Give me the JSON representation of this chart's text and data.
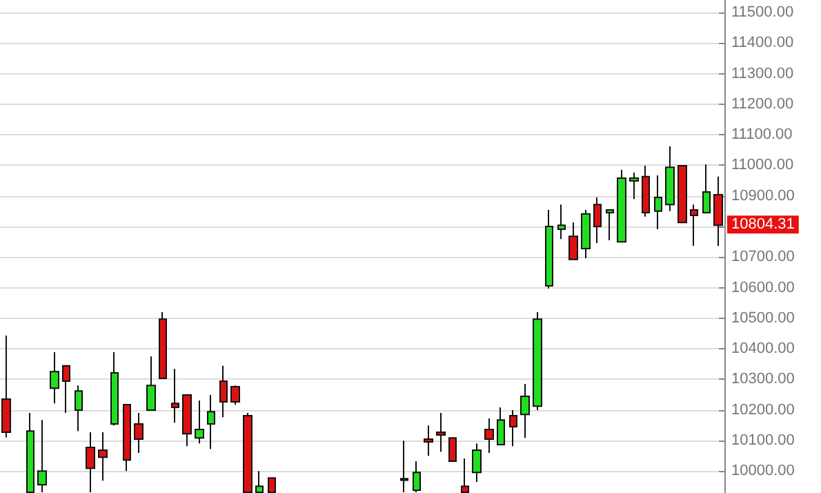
{
  "chart_data": {
    "type": "candlestick",
    "categories": [
      null,
      null,
      null,
      null,
      null,
      null,
      null,
      null,
      null,
      null,
      null,
      null,
      null,
      null,
      null,
      null,
      null,
      null,
      null,
      null,
      null,
      null,
      null,
      null,
      null,
      null,
      null,
      null,
      null,
      null,
      null,
      null,
      null,
      null,
      null,
      null,
      null,
      null,
      null,
      null,
      null,
      null,
      null,
      null,
      null,
      null,
      null,
      null,
      null,
      null,
      null,
      null,
      null,
      null,
      null,
      null,
      null,
      null,
      null,
      null
    ],
    "ohlc": [
      [
        10235,
        10443,
        10110,
        10127
      ],
      null,
      [
        9930,
        10190,
        9930,
        10131
      ],
      [
        9955,
        10167,
        9930,
        10000
      ],
      [
        10271,
        10389,
        10221,
        10325
      ],
      [
        10344,
        10344,
        10190,
        10294
      ],
      [
        10199,
        10280,
        10131,
        10262
      ],
      [
        10077,
        10127,
        9930,
        10009
      ],
      [
        10068,
        10127,
        9968,
        10045
      ],
      [
        10154,
        10389,
        10149,
        10321
      ],
      [
        10217,
        10217,
        10000,
        10036
      ],
      [
        10154,
        10190,
        10059,
        10104
      ],
      [
        10199,
        10375,
        10199,
        10280
      ],
      [
        10497,
        10520,
        10303,
        10303
      ],
      [
        10221,
        10334,
        10158,
        10208
      ],
      [
        10249,
        10249,
        10081,
        10122
      ],
      [
        10108,
        10231,
        10090,
        10136
      ],
      [
        10154,
        10249,
        10072,
        10194
      ],
      [
        10294,
        10344,
        10176,
        10226
      ],
      [
        10276,
        10280,
        10217,
        10226
      ],
      [
        10181,
        10190,
        9930,
        9930
      ],
      [
        9930,
        10000,
        9930,
        9950
      ],
      [
        9977,
        9977,
        9930,
        9930
      ],
      null,
      null,
      null,
      null,
      null,
      null,
      null,
      null,
      null,
      null,
      [
        9975,
        10099,
        9930,
        9970
      ],
      [
        9937,
        10032,
        9930,
        9995
      ],
      [
        10104,
        10149,
        10050,
        10095
      ],
      [
        10127,
        10190,
        10063,
        10118
      ],
      [
        10108,
        10108,
        10032,
        10032
      ],
      [
        9950,
        10041,
        9930,
        9930
      ],
      [
        9995,
        10090,
        9964,
        10068
      ],
      [
        10136,
        10172,
        10059,
        10104
      ],
      [
        10086,
        10208,
        10086,
        10167
      ],
      [
        10181,
        10199,
        10081,
        10145
      ],
      [
        10185,
        10285,
        10108,
        10244
      ],
      [
        10212,
        10520,
        10199,
        10497
      ],
      [
        10606,
        10854,
        10597,
        10800
      ],
      [
        10791,
        10872,
        10759,
        10804
      ],
      [
        10768,
        10813,
        10692,
        10692
      ],
      [
        10728,
        10854,
        10696,
        10841
      ],
      [
        10872,
        10895,
        10746,
        10800
      ],
      [
        10845,
        10854,
        10755,
        10854
      ],
      [
        10750,
        10985,
        10750,
        10958
      ],
      [
        10949,
        10976,
        10890,
        10958
      ],
      [
        10963,
        10999,
        10832,
        10845
      ],
      [
        10850,
        10967,
        10791,
        10895
      ],
      [
        10872,
        11062,
        10850,
        10994
      ],
      [
        10999,
        10999,
        10813,
        10813
      ],
      [
        10854,
        10872,
        10737,
        10836
      ],
      [
        10845,
        11003,
        10845,
        10913
      ],
      [
        10904,
        10963,
        10737,
        10804
      ]
    ],
    "colors": [
      "#dd1111",
      null,
      "#22dd22",
      "#22dd22",
      "#22dd22",
      "#dd1111",
      "#22dd22",
      "#dd1111",
      "#dd1111",
      "#22dd22",
      "#dd1111",
      "#dd1111",
      "#22dd22",
      "#dd1111",
      "#dd1111",
      "#dd1111",
      "#22dd22",
      "#22dd22",
      "#dd1111",
      "#dd1111",
      "#dd1111",
      "#22dd22",
      "#dd1111",
      null,
      null,
      null,
      null,
      null,
      null,
      null,
      null,
      null,
      null,
      "#dd1111",
      "#22dd22",
      "#dd1111",
      "#dd1111",
      "#dd1111",
      "#dd1111",
      "#22dd22",
      "#dd1111",
      "#22dd22",
      "#dd1111",
      "#22dd22",
      "#22dd22",
      "#22dd22",
      "#22dd22",
      "#dd1111",
      "#22dd22",
      "#dd1111",
      "#22dd22",
      "#22dd22",
      "#22dd22",
      "#dd1111",
      "#22dd22",
      "#22dd22",
      "#dd1111",
      "#dd1111",
      "#22dd22",
      "#dd1111"
    ],
    "ylim": [
      9928,
      11541
    ],
    "yticks": [
      {
        "value": 10000,
        "label": "10000.00"
      },
      {
        "value": 10100,
        "label": "10100.00"
      },
      {
        "value": 10200,
        "label": "10200.00"
      },
      {
        "value": 10300,
        "label": "10300.00"
      },
      {
        "value": 10400,
        "label": "10400.00"
      },
      {
        "value": 10500,
        "label": "10500.00"
      },
      {
        "value": 10600,
        "label": "10600.00"
      },
      {
        "value": 10700,
        "label": "10700.00"
      },
      {
        "value": 10800,
        "label": null
      },
      {
        "value": 10900,
        "label": "10900.00"
      },
      {
        "value": 11000,
        "label": "11000.00"
      },
      {
        "value": 11100,
        "label": "11100.00"
      },
      {
        "value": 11200,
        "label": "11200.00"
      },
      {
        "value": 11300,
        "label": "11300.00"
      },
      {
        "value": 11400,
        "label": "11400.00"
      },
      {
        "value": 11500,
        "label": "11500.00"
      }
    ],
    "tick_labels": "y",
    "grid": "y",
    "annotations": [
      "10804.31"
    ]
  }
}
